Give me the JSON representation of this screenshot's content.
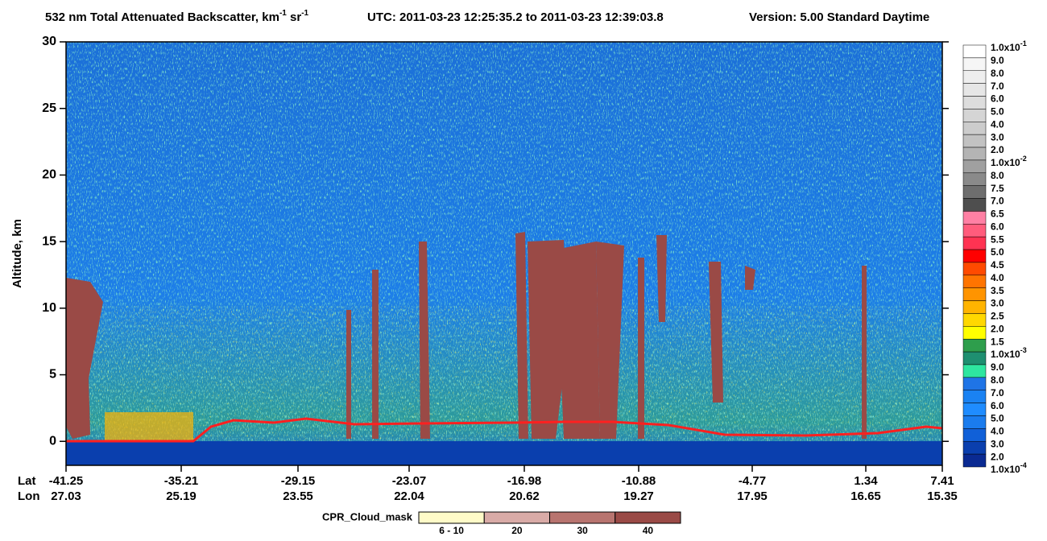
{
  "chart_data": {
    "type": "curtain",
    "title": {
      "main": "532 nm Total Attenuated Backscatter, km",
      "exp1": "-1",
      "mid": " sr",
      "exp2": "-1"
    },
    "subtitle": "UTC:  2011-03-23 12:25:35.2  to  2011-03-23 12:39:03.8",
    "version": "Version: 5.00  Standard  Daytime",
    "ylabel": "Altitude, km",
    "ylim": [
      -1.8,
      30
    ],
    "yticks": [
      0,
      5,
      10,
      15,
      20,
      25,
      30
    ],
    "x_row_labels": [
      "Lat",
      "Lon"
    ],
    "xticks": [
      {
        "lat": -41.25,
        "lon": 27.03
      },
      {
        "lat": -35.21,
        "lon": 25.19
      },
      {
        "lat": -29.15,
        "lon": 23.55
      },
      {
        "lat": -23.07,
        "lon": 22.04
      },
      {
        "lat": -16.98,
        "lon": 20.62
      },
      {
        "lat": -10.88,
        "lon": 19.27
      },
      {
        "lat": -4.77,
        "lon": 17.95
      },
      {
        "lat": 1.34,
        "lon": 16.65
      },
      {
        "lat": 7.41,
        "lon": 15.35
      }
    ],
    "colorbar": {
      "labels": [
        {
          "base": "1.0x10",
          "exp": "-1"
        },
        "9.0",
        "8.0",
        "7.0",
        "6.0",
        "5.0",
        "4.0",
        "3.0",
        "2.0",
        {
          "base": "1.0x10",
          "exp": "-2"
        },
        "8.0",
        "7.5",
        "7.0",
        "6.5",
        "6.0",
        "5.5",
        "5.0",
        "4.5",
        "4.0",
        "3.5",
        "3.0",
        "2.5",
        "2.0",
        "1.5",
        {
          "base": "1.0x10",
          "exp": "-3"
        },
        "9.0",
        "8.0",
        "7.0",
        "6.0",
        "5.0",
        "4.0",
        "3.0",
        "2.0",
        {
          "base": "1.0x10",
          "exp": "-4"
        }
      ],
      "colors": [
        "#ffffff",
        "#f6f6f6",
        "#eeeeee",
        "#e6e6e6",
        "#dddddd",
        "#d5d5d5",
        "#cccccc",
        "#c2c2c2",
        "#b4b4b4",
        "#a0a0a0",
        "#8a8a8a",
        "#6e6e6e",
        "#4e4e4e",
        "#ff80a4",
        "#ff5c7c",
        "#ff3352",
        "#ff0000",
        "#ff4a00",
        "#ff7400",
        "#ff9400",
        "#ffb400",
        "#ffd800",
        "#ffff00",
        "#2e9e4c",
        "#1e8f70",
        "#2ee6a0",
        "#1f74e6",
        "#1a82f2",
        "#1f8cff",
        "#1a7cee",
        "#1060d8",
        "#0a3fae",
        "#0a2a92"
      ]
    },
    "cpr_legend": {
      "title": "CPR_Cloud_mask",
      "labels": [
        "6 - 10",
        "20",
        "30",
        "40"
      ],
      "colors": [
        "#fffbc8",
        "#d9aba7",
        "#b8746f",
        "#9a4a46"
      ]
    }
  }
}
